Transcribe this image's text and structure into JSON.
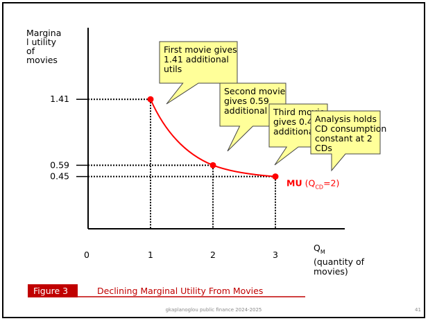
{
  "chart_data": {
    "type": "line",
    "y_label": [
      "Margina",
      "l utility",
      "of",
      "movies"
    ],
    "x_label": {
      "symbol": "Q",
      "subscript": "M",
      "lines": [
        "(quantity of",
        "movies)"
      ]
    },
    "x": [
      1,
      2,
      3
    ],
    "values": [
      1.41,
      0.59,
      0.45
    ],
    "color": "#ff0000",
    "xlim": [
      0,
      4.1
    ],
    "xticks": [
      0,
      1,
      2,
      3
    ],
    "ylim": [
      -0.2,
      2.3
    ],
    "yticks": [
      1.41,
      0.59,
      0.45
    ],
    "series_label": {
      "name": "MU",
      "open": "(Q",
      "subscript": "CD",
      "close": "=2)"
    },
    "annotations": [
      [
        "First movie gives",
        "1.41 additional",
        "utils"
      ],
      [
        "Second movie",
        "gives 0.59",
        "additional utils"
      ],
      [
        "Third movie",
        "gives 0.45",
        "additional utils"
      ],
      [
        "Analysis holds",
        "CD consumption",
        "constant at 2",
        "CDs"
      ]
    ]
  },
  "slide": {
    "figure": "Figure 3",
    "caption": "Declining Marginal Utility From Movies",
    "footer": "gkaplanoglou public finance 2024-2025",
    "page": "41"
  }
}
